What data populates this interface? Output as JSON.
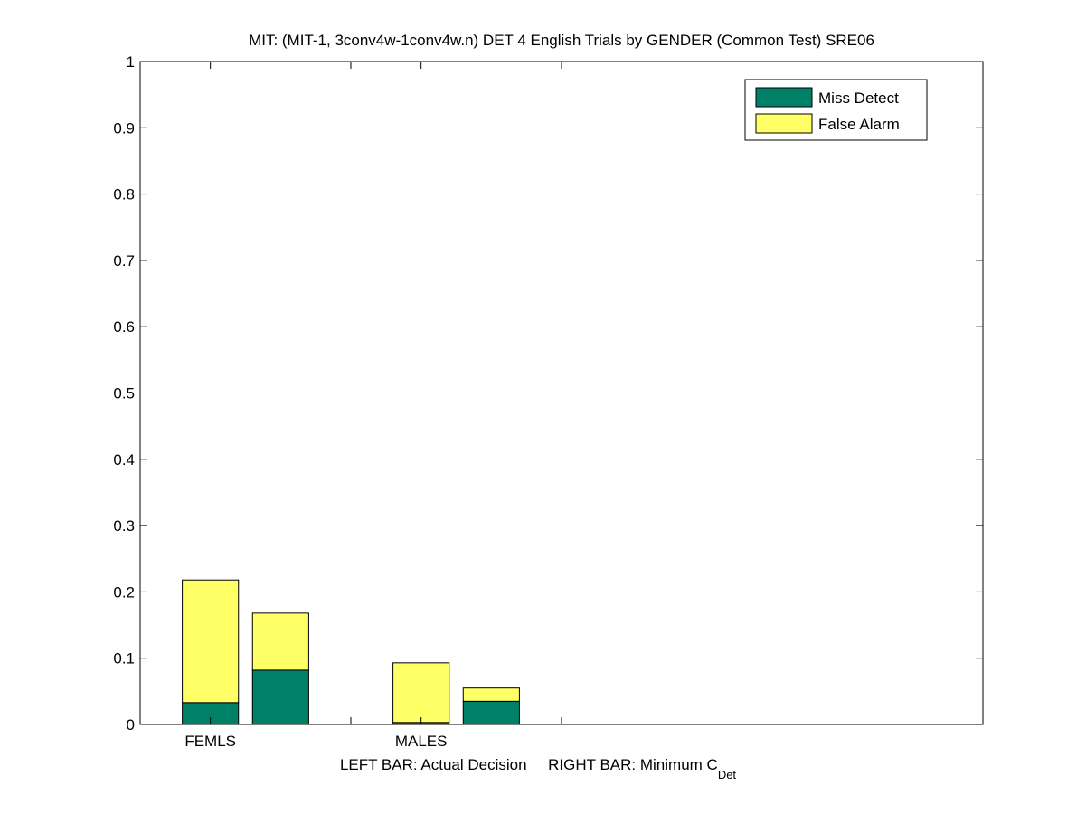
{
  "chart_data": {
    "type": "stacked-bar",
    "title": "MIT: (MIT-1, 3conv4w-1conv4w.n) DET 4 English Trials by GENDER (Common Test) SRE06",
    "xlabel": "LEFT BAR: Actual Decision     RIGHT BAR: Minimum C",
    "xlabel_subscript": "Det",
    "x": [
      1,
      2,
      4,
      5
    ],
    "series": [
      {
        "name": "Miss Detect",
        "color": "#008066",
        "values": [
          0.033,
          0.082,
          0.003,
          0.035
        ]
      },
      {
        "name": "False Alarm",
        "color": "#ffff66",
        "values": [
          0.185,
          0.086,
          0.09,
          0.02
        ]
      }
    ],
    "bar_width": 0.8,
    "xlim": [
      0,
      12
    ],
    "xticks": [
      {
        "value": 1,
        "label": "FEMLS"
      },
      {
        "value": 3,
        "label": null
      },
      {
        "value": 4,
        "label": "MALES"
      },
      {
        "value": 6,
        "label": null
      }
    ],
    "ylim": [
      0,
      1
    ],
    "yticks": [
      0,
      0.1,
      0.2,
      0.3,
      0.4,
      0.5,
      0.6,
      0.7,
      0.8,
      0.9,
      1
    ],
    "grid": false,
    "legend": "top-right"
  }
}
